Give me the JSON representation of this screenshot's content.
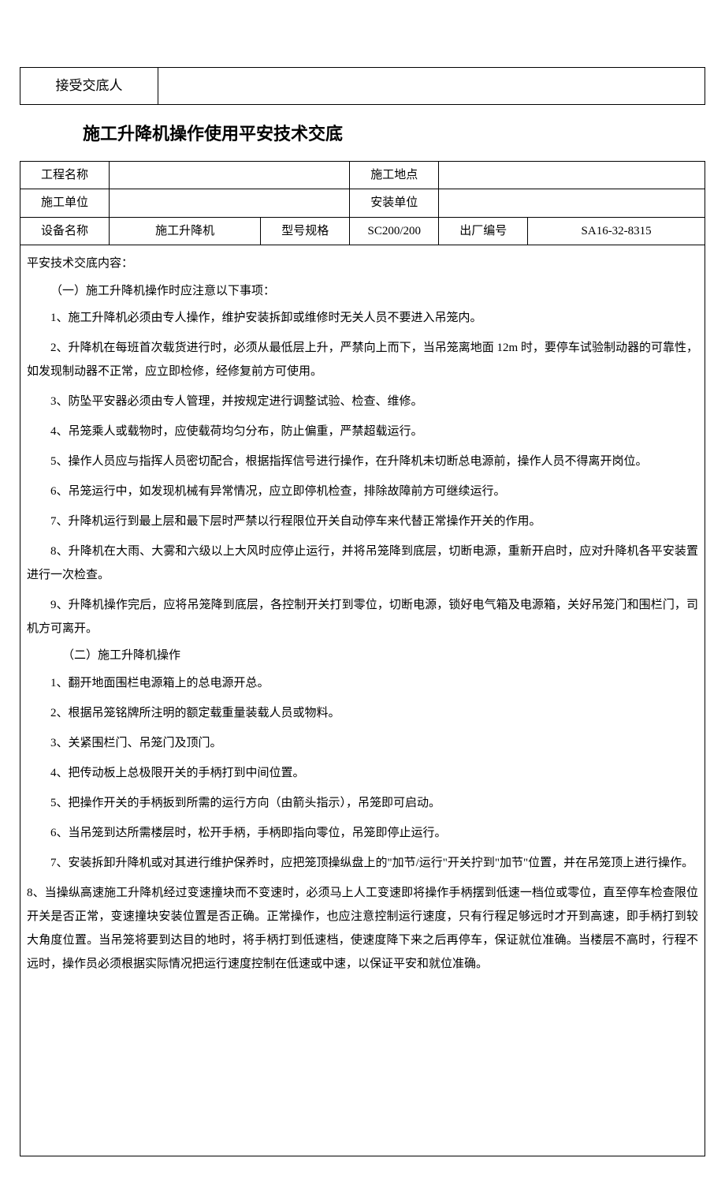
{
  "top_table": {
    "label": "接受交底人",
    "value": ""
  },
  "title": "施工升降机操作使用平安技术交底",
  "info_table": {
    "row1": {
      "c1": "工程名称",
      "c2": "",
      "c3": "施工地点",
      "c4": ""
    },
    "row2": {
      "c1": "施工单位",
      "c2": "",
      "c3": "安装单位",
      "c4": ""
    },
    "row3": {
      "c1": "设备名称",
      "c2": "施工升降机",
      "c3": "型号规格",
      "c4": "SC200/200",
      "c5": "出厂编号",
      "c6": "SA16-32-8315"
    }
  },
  "content": {
    "header": "平安技术交底内容：",
    "section1_heading": "（一）施工升降机操作时应注意以下事项：",
    "section1": {
      "i1": "1、施工升降机必须由专人操作，维护安装拆卸或维修时无关人员不要进入吊笼内。",
      "i2": "2、升降机在每班首次载货进行时，必须从最低层上升，严禁向上而下，当吊笼离地面 12m 时，要停车试验制动器的可靠性，如发现制动器不正常，应立即检修，经修复前方可使用。",
      "i3": "3、防坠平安器必须由专人管理，并按规定进行调整试验、检查、维修。",
      "i4": "4、吊笼乘人或载物时，应使载荷均匀分布，防止偏重，严禁超载运行。",
      "i5": "5、操作人员应与指挥人员密切配合，根据指挥信号进行操作，在升降机未切断总电源前，操作人员不得离开岗位。",
      "i6": "6、吊笼运行中，如发现机械有异常情况，应立即停机检查，排除故障前方可继续运行。",
      "i7": "7、升降机运行到最上层和最下层时严禁以行程限位开关自动停车来代替正常操作开关的作用。",
      "i8": "8、升降机在大雨、大雾和六级以上大风时应停止运行，并将吊笼降到底层，切断电源，重新开启时，应对升降机各平安装置进行一次检查。",
      "i9": "9、升降机操作完后，应将吊笼降到底层，各控制开关打到零位，切断电源，锁好电气箱及电源箱，关好吊笼门和围栏门，司机方可离开。"
    },
    "section2_heading": "（二）施工升降机操作",
    "section2": {
      "i1": "1、翻开地面围栏电源箱上的总电源开总。",
      "i2": "2、根据吊笼铭牌所注明的额定载重量装载人员或物料。",
      "i3": "3、关紧围栏门、吊笼门及顶门。",
      "i4": "4、把传动板上总极限开关的手柄打到中间位置。",
      "i5": "5、把操作开关的手柄扳到所需的运行方向（由箭头指示），吊笼即可启动。",
      "i6": "6、当吊笼到达所需楼层时，松开手柄，手柄即指向零位，吊笼即停止运行。",
      "i7": "7、安装拆卸升降机或对其进行维护保养时，应把笼顶操纵盘上的\"加节/运行\"开关拧到\"加节\"位置，并在吊笼顶上进行操作。",
      "i8": "8、当操纵高速施工升降机经过变速撞块而不变速时，必须马上人工变速即将操作手柄摆到低速一档位或零位，直至停车检查限位开关是否正常，变速撞块安装位置是否正确。正常操作，也应注意控制运行速度，只有行程足够远时才开到高速，即手柄打到较大角度位置。当吊笼将要到达目的地时，将手柄打到低速档，使速度降下来之后再停车，保证就位准确。当楼层不高时，行程不远时，操作员必须根据实际情况把运行速度控制在低速或中速，以保证平安和就位准确。"
    }
  }
}
